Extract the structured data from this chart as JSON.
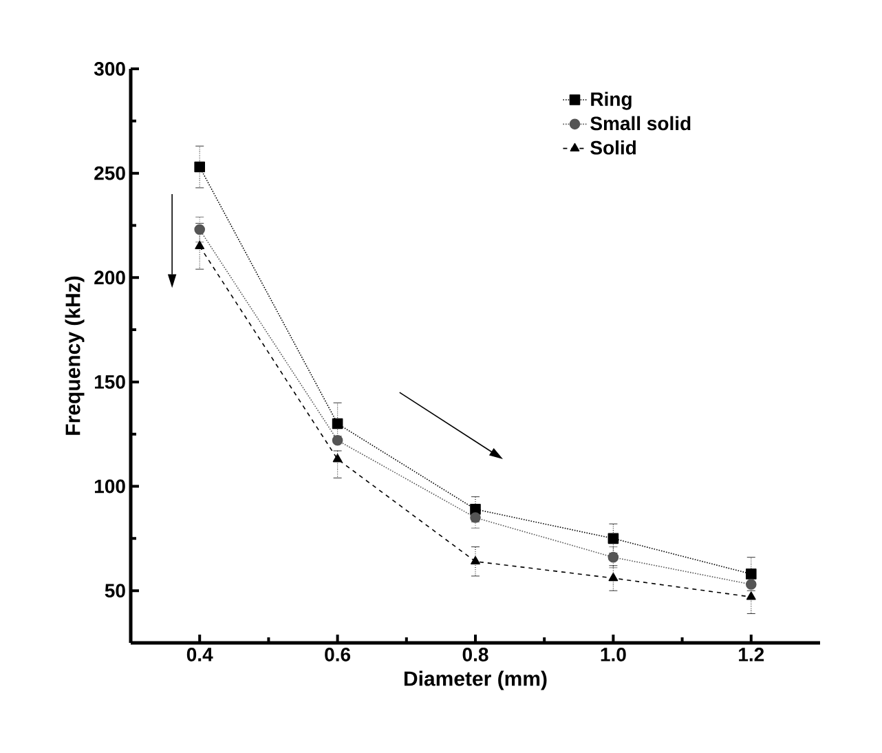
{
  "chart_data": {
    "type": "line",
    "xlabel": "Diameter (mm)",
    "ylabel": "Frequency (kHz)",
    "x": [
      0.4,
      0.6,
      0.8,
      1.0,
      1.2
    ],
    "xlim": [
      0.3,
      1.3
    ],
    "ylim": [
      25,
      300
    ],
    "xticks": [
      0.4,
      0.6,
      0.8,
      {
        "value": 1,
        "label": "1.0"
      },
      1.2
    ],
    "yticks": [
      50,
      100,
      150,
      200,
      250,
      300
    ],
    "grid": false,
    "legend": "top right",
    "series": [
      {
        "name": "Ring",
        "color": "#000000",
        "marker": "square",
        "line_style": "dotted",
        "values": [
          253,
          130,
          89,
          75,
          58
        ],
        "errors": [
          10,
          [
            124,
            140
          ],
          6,
          7,
          [
            54,
            66
          ]
        ]
      },
      {
        "name": "Small solid",
        "color": "#555555",
        "marker": "circle",
        "line_style": "dotted",
        "values": [
          223,
          122,
          85,
          66,
          53
        ],
        "errors": [
          6,
          null,
          5,
          5,
          null
        ]
      },
      {
        "name": "Solid",
        "color": "#000000",
        "marker": "triangle",
        "line_style": "dashed",
        "values": [
          215,
          113,
          64,
          56,
          47
        ],
        "errors": [
          11,
          [
            104,
            117
          ],
          7,
          6,
          [
            39,
            50
          ]
        ]
      }
    ]
  }
}
